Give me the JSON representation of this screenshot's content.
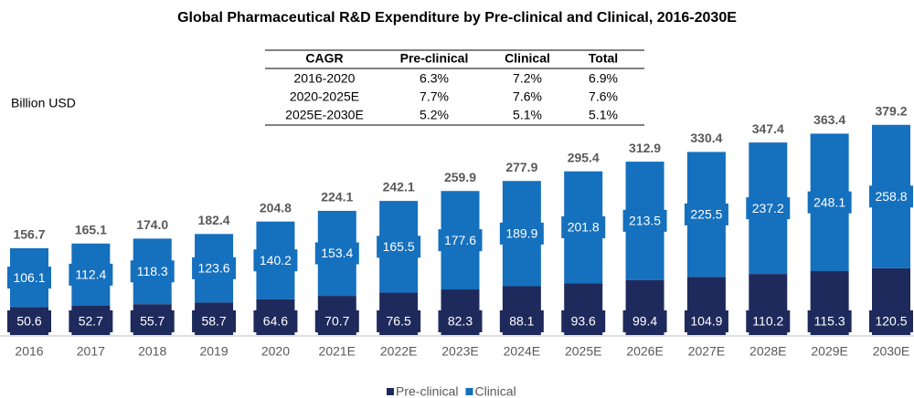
{
  "chart_data": {
    "type": "stacked_bar",
    "title": "Global Pharmaceutical R&D Expenditure by Pre-clinical and Clinical, 2016-2030E",
    "unit_label": "Billion USD",
    "categories": [
      "2016",
      "2017",
      "2018",
      "2019",
      "2020",
      "2021E",
      "2022E",
      "2023E",
      "2024E",
      "2025E",
      "2026E",
      "2027E",
      "2028E",
      "2029E",
      "2030E"
    ],
    "series": [
      {
        "name": "Pre-clinical",
        "color": "#1f2a5c",
        "values": [
          50.6,
          52.7,
          55.7,
          58.7,
          64.6,
          70.7,
          76.5,
          82.3,
          88.1,
          93.6,
          99.4,
          104.9,
          110.2,
          115.3,
          120.5
        ]
      },
      {
        "name": "Clinical",
        "color": "#1570be",
        "values": [
          106.1,
          112.4,
          118.3,
          123.6,
          140.2,
          153.4,
          165.5,
          177.6,
          189.9,
          201.8,
          213.5,
          225.5,
          237.2,
          248.1,
          258.8
        ]
      }
    ],
    "totals": [
      156.7,
      165.1,
      174.0,
      182.4,
      204.8,
      224.1,
      242.1,
      259.9,
      277.9,
      295.4,
      312.9,
      330.4,
      347.4,
      363.4,
      379.2
    ],
    "total_labels": [
      "156.7",
      "165.1",
      "174.0",
      "182.4",
      "204.8",
      "224.1",
      "242.1",
      "259.9",
      "277.9",
      "295.4",
      "312.9",
      "330.4",
      "347.4",
      "363.4",
      "379.2"
    ],
    "table": {
      "header": [
        "CAGR",
        "Pre-clinical",
        "Clinical",
        "Total"
      ],
      "rows": [
        [
          "2016-2020",
          "6.3%",
          "7.2%",
          "6.9%"
        ],
        [
          "2020-2025E",
          "7.7%",
          "7.6%",
          "7.6%"
        ],
        [
          "2025E-2030E",
          "5.2%",
          "5.1%",
          "5.1%"
        ]
      ]
    }
  }
}
